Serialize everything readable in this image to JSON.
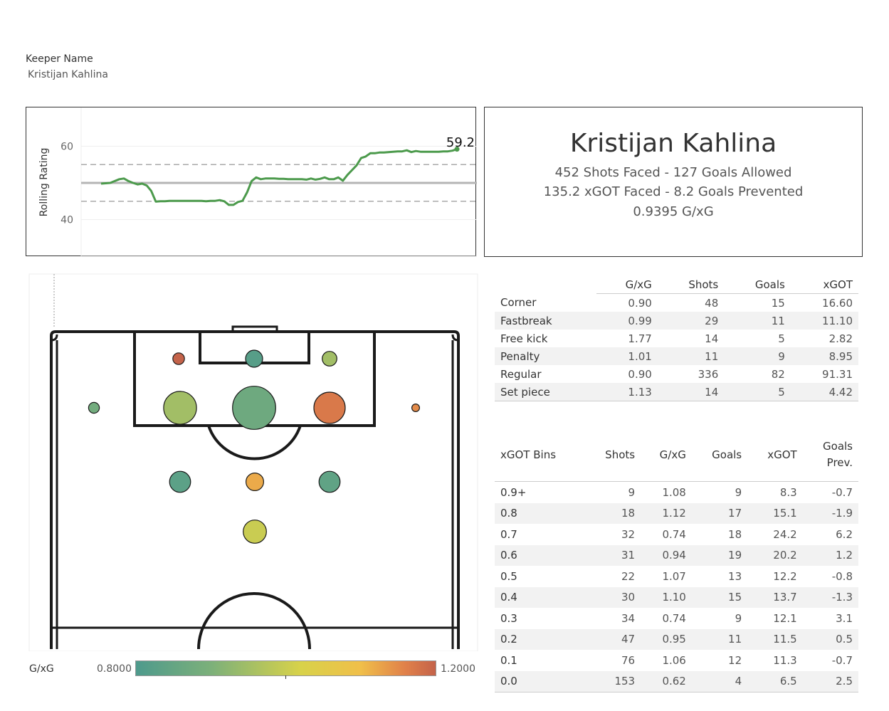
{
  "filter": {
    "title": "Keeper Name",
    "value": "Kristijan Kahlina"
  },
  "rating_chart": {
    "ylabel": "Rolling Rating",
    "last_value_label": "59.2",
    "color": "#4c9a4c"
  },
  "chart_data": {
    "type": "line",
    "ylabel": "Rolling Rating",
    "ylim": [
      30,
      70
    ],
    "yticks": [
      40,
      60
    ],
    "reference_lines": {
      "solid": 50,
      "dashed": [
        45,
        55
      ]
    },
    "series": [
      {
        "values": [
          49.8,
          49.9,
          50.0,
          50.5,
          51.0,
          51.2,
          50.5,
          50.0,
          49.6,
          49.8,
          49.3,
          47.8,
          44.9,
          45.0,
          45.0,
          45.1,
          45.1,
          45.1,
          45.1,
          45.1,
          45.1,
          45.1,
          45.1,
          45.0,
          45.1,
          45.1,
          45.3,
          45.0,
          44.0,
          44.0,
          44.8,
          45.1,
          47.4,
          50.5,
          51.5,
          51.0,
          51.2,
          51.2,
          51.2,
          51.1,
          51.1,
          51.0,
          51.0,
          51.0,
          51.0,
          50.9,
          51.2,
          50.9,
          51.1,
          51.5,
          51.0,
          51.0,
          51.5,
          50.6,
          52.2,
          53.5,
          54.8,
          56.8,
          57.2,
          58.1,
          58.1,
          58.3,
          58.3,
          58.4,
          58.5,
          58.6,
          58.6,
          58.9,
          58.4,
          58.7,
          58.5,
          58.5,
          58.5,
          58.5,
          58.5,
          58.6,
          58.6,
          58.8,
          59.2
        ]
      }
    ]
  },
  "summary": {
    "name": "Kristijan Kahlina",
    "line1": "452 Shots Faced - 127 Goals Allowed",
    "line2": "135.2 xGOT Faced - 8.2 Goals Prevented",
    "line3": "0.9395 G/xG"
  },
  "pitch": {
    "zones": [
      {
        "shots": 14,
        "gxg": 1.2
      },
      {
        "shots": 30,
        "gxg": 0.82
      },
      {
        "shots": 22,
        "gxg": 0.95
      },
      {
        "shots": 12,
        "gxg": 0.88
      },
      {
        "shots": 110,
        "gxg": 0.95
      },
      {
        "shots": 190,
        "gxg": 0.87
      },
      {
        "shots": 100,
        "gxg": 1.17
      },
      {
        "shots": 6,
        "gxg": 1.15
      },
      {
        "shots": 45,
        "gxg": 0.83
      },
      {
        "shots": 32,
        "gxg": 1.12
      },
      {
        "shots": 45,
        "gxg": 0.84
      },
      {
        "shots": 55,
        "gxg": 1.0
      }
    ]
  },
  "legend": {
    "title": "G/xG",
    "min": "0.8000",
    "max": "1.2000"
  },
  "type_table": {
    "headers": [
      "",
      "G/xG",
      "Shots",
      "Goals",
      "xGOT"
    ],
    "rows": [
      [
        "Corner",
        "0.90",
        "48",
        "15",
        "16.60"
      ],
      [
        "Fastbreak",
        "0.99",
        "29",
        "11",
        "11.10"
      ],
      [
        "Free kick",
        "1.77",
        "14",
        "5",
        "2.82"
      ],
      [
        "Penalty",
        "1.01",
        "11",
        "9",
        "8.95"
      ],
      [
        "Regular",
        "0.90",
        "336",
        "82",
        "91.31"
      ],
      [
        "Set piece",
        "1.13",
        "14",
        "5",
        "4.42"
      ]
    ]
  },
  "bins_table": {
    "headers": [
      "xGOT Bins",
      "Shots",
      "G/xG",
      "Goals",
      "xGOT",
      "Goals",
      "Prev."
    ],
    "rows": [
      [
        "0.9+",
        "9",
        "1.08",
        "9",
        "8.3",
        "-0.7"
      ],
      [
        "0.8",
        "18",
        "1.12",
        "17",
        "15.1",
        "-1.9"
      ],
      [
        "0.7",
        "32",
        "0.74",
        "18",
        "24.2",
        "6.2"
      ],
      [
        "0.6",
        "31",
        "0.94",
        "19",
        "20.2",
        "1.2"
      ],
      [
        "0.5",
        "22",
        "1.07",
        "13",
        "12.2",
        "-0.8"
      ],
      [
        "0.4",
        "30",
        "1.10",
        "15",
        "13.7",
        "-1.3"
      ],
      [
        "0.3",
        "34",
        "0.74",
        "9",
        "12.1",
        "3.1"
      ],
      [
        "0.2",
        "47",
        "0.95",
        "11",
        "11.5",
        "0.5"
      ],
      [
        "0.1",
        "76",
        "1.06",
        "12",
        "11.3",
        "-0.7"
      ],
      [
        "0.0",
        "153",
        "0.62",
        "4",
        "6.5",
        "2.5"
      ]
    ]
  }
}
